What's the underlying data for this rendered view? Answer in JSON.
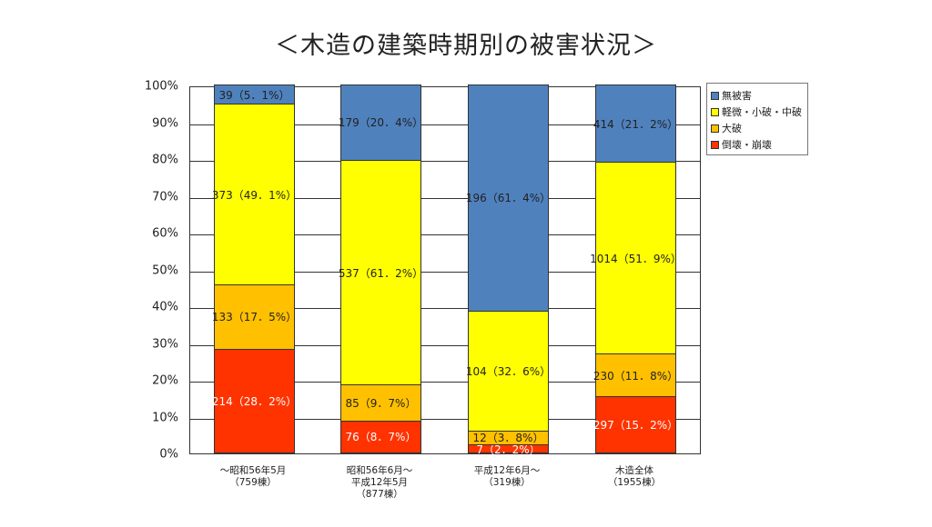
{
  "title": "＜木造の建築時期別の被害状況＞",
  "colors": {
    "none": "#4f81bd",
    "light": "#ffff00",
    "major": "#ffc000",
    "collapse": "#ff3300"
  },
  "chart_data": {
    "type": "bar",
    "stacked": true,
    "normalized": true,
    "title": "＜木造の建築時期別の被害状況＞",
    "xlabel": "",
    "ylabel": "",
    "ylim": [
      0,
      100
    ],
    "yticks": [
      "0%",
      "10%",
      "20%",
      "30%",
      "40%",
      "50%",
      "60%",
      "70%",
      "80%",
      "90%",
      "100%"
    ],
    "grid": true,
    "legend_position": "right",
    "categories": [
      "～昭和56年5月\n（759棟）",
      "昭和56年6月～\n平成12年5月\n（877棟）",
      "平成12年6月～\n（319棟）",
      "木造全体\n（1955棟）"
    ],
    "series": [
      {
        "name": "倒壊・崩壊",
        "color": "#ff3300",
        "counts": [
          214,
          76,
          7,
          297
        ],
        "values": [
          28.2,
          8.7,
          2.2,
          15.2
        ],
        "labels": [
          "214（28．2%）",
          "76（8．7%）",
          "7（2．2%）",
          "297（15．2%）"
        ]
      },
      {
        "name": "大破",
        "color": "#ffc000",
        "counts": [
          133,
          85,
          12,
          230
        ],
        "values": [
          17.5,
          9.7,
          3.8,
          11.8
        ],
        "labels": [
          "133（17．5%）",
          "85（9．7%）",
          "12（3．8%）",
          "230（11．8%）"
        ]
      },
      {
        "name": "軽微・小破・中破",
        "color": "#ffff00",
        "counts": [
          373,
          537,
          104,
          1014
        ],
        "values": [
          49.1,
          61.2,
          32.6,
          51.9
        ],
        "labels": [
          "373（49．1%）",
          "537（61．2%）",
          "104（32．6%）",
          "1014（51．9%）"
        ]
      },
      {
        "name": "無被害",
        "color": "#4f81bd",
        "counts": [
          39,
          179,
          196,
          414
        ],
        "values": [
          5.1,
          20.4,
          61.4,
          21.2
        ],
        "labels": [
          "39（5．1%）",
          "179（20．4%）",
          "196（61．4%）",
          "414（21．2%）"
        ]
      }
    ]
  },
  "legend": [
    {
      "label": "無被害",
      "color": "#4f81bd"
    },
    {
      "label": "軽微・小破・中破",
      "color": "#ffff00"
    },
    {
      "label": "大破",
      "color": "#ffc000"
    },
    {
      "label": "倒壊・崩壊",
      "color": "#ff3300"
    }
  ]
}
